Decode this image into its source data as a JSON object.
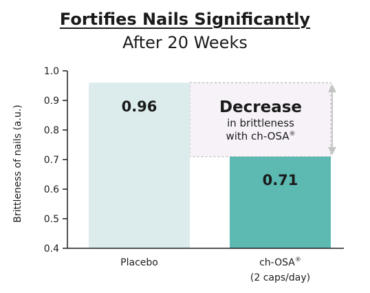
{
  "header": {
    "title": "Fortifies Nails Significantly",
    "subtitle": "After 20 Weeks"
  },
  "annotation": {
    "headline": "Decrease",
    "line1": "in brittleness",
    "line2_text": "with ch-OSA",
    "line2_mark": "®"
  },
  "colors": {
    "placebo_bar": "#dcecec",
    "chosa_bar": "#5cbab2",
    "decrease_region": "#f7f2f8",
    "decrease_border": "#c4c4c4",
    "arrow": "#c4c4c4",
    "axis": "#1a1a1a"
  },
  "chart_data": {
    "type": "bar",
    "title": "Fortifies Nails Significantly",
    "subtitle": "After 20 Weeks",
    "xlabel": "",
    "ylabel": "Brittleness of nails (a.u.)",
    "ylim": [
      0.4,
      1.0
    ],
    "yticks": [
      "0.4",
      "0.5",
      "0.6",
      "0.7",
      "0.8",
      "0.9",
      "1.0"
    ],
    "grid": false,
    "categories": [
      {
        "line1": "Placebo",
        "line1_mark": "",
        "line2": ""
      },
      {
        "line1": "ch-OSA",
        "line1_mark": "®",
        "line2": "(2 caps/day)"
      }
    ],
    "values": [
      0.96,
      0.71
    ],
    "value_labels": [
      "0.96",
      "0.71"
    ]
  }
}
